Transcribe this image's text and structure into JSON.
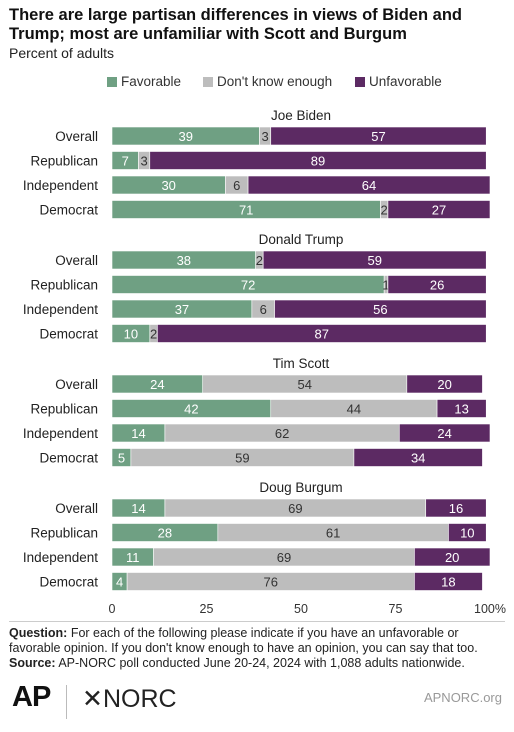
{
  "header": {
    "title": "There are large partisan differences in views of Biden and Trump; most are unfamiliar with Scott and Burgum",
    "subtitle": "Percent of adults"
  },
  "legend": [
    {
      "label": "Favorable",
      "color": "#6fa083"
    },
    {
      "label": "Don't know enough",
      "color": "#bdbdbd"
    },
    {
      "label": "Unfavorable",
      "color": "#5c2a63"
    }
  ],
  "chart_data": {
    "type": "bar",
    "orientation": "horizontal",
    "stacked": true,
    "xlim": [
      0,
      100
    ],
    "xticks": [
      "0",
      "25",
      "50",
      "75",
      "100%"
    ],
    "grid": false,
    "legend_position": "top",
    "groups": [
      {
        "name": "Joe Biden",
        "rows": [
          {
            "label": "Overall",
            "favorable": 39,
            "dont_know": 3,
            "unfavorable": 57
          },
          {
            "label": "Republican",
            "favorable": 7,
            "dont_know": 3,
            "unfavorable": 89
          },
          {
            "label": "Independent",
            "favorable": 30,
            "dont_know": 6,
            "unfavorable": 64
          },
          {
            "label": "Democrat",
            "favorable": 71,
            "dont_know": 2,
            "unfavorable": 27
          }
        ]
      },
      {
        "name": "Donald Trump",
        "rows": [
          {
            "label": "Overall",
            "favorable": 38,
            "dont_know": 2,
            "unfavorable": 59
          },
          {
            "label": "Republican",
            "favorable": 72,
            "dont_know": 1,
            "unfavorable": 26
          },
          {
            "label": "Independent",
            "favorable": 37,
            "dont_know": 6,
            "unfavorable": 56
          },
          {
            "label": "Democrat",
            "favorable": 10,
            "dont_know": 2,
            "unfavorable": 87
          }
        ]
      },
      {
        "name": "Tim Scott",
        "rows": [
          {
            "label": "Overall",
            "favorable": 24,
            "dont_know": 54,
            "unfavorable": 20
          },
          {
            "label": "Republican",
            "favorable": 42,
            "dont_know": 44,
            "unfavorable": 13
          },
          {
            "label": "Independent",
            "favorable": 14,
            "dont_know": 62,
            "unfavorable": 24
          },
          {
            "label": "Democrat",
            "favorable": 5,
            "dont_know": 59,
            "unfavorable": 34
          }
        ]
      },
      {
        "name": "Doug Burgum",
        "rows": [
          {
            "label": "Overall",
            "favorable": 14,
            "dont_know": 69,
            "unfavorable": 16
          },
          {
            "label": "Republican",
            "favorable": 28,
            "dont_know": 61,
            "unfavorable": 10
          },
          {
            "label": "Independent",
            "favorable": 11,
            "dont_know": 69,
            "unfavorable": 20
          },
          {
            "label": "Democrat",
            "favorable": 4,
            "dont_know": 76,
            "unfavorable": 18
          }
        ]
      }
    ]
  },
  "footer": {
    "question_label": "Question:",
    "question_text": "For each of the following please indicate if you have an unfavorable or favorable opinion. If you don't know enough to have an opinion, you can say that too.",
    "source_label": "Source:",
    "source_text": "AP-NORC poll conducted June 20-24, 2024 with 1,088 adults nationwide.",
    "logo_ap": "AP",
    "logo_norc": "✕NORC",
    "site": "APNORC.org"
  }
}
